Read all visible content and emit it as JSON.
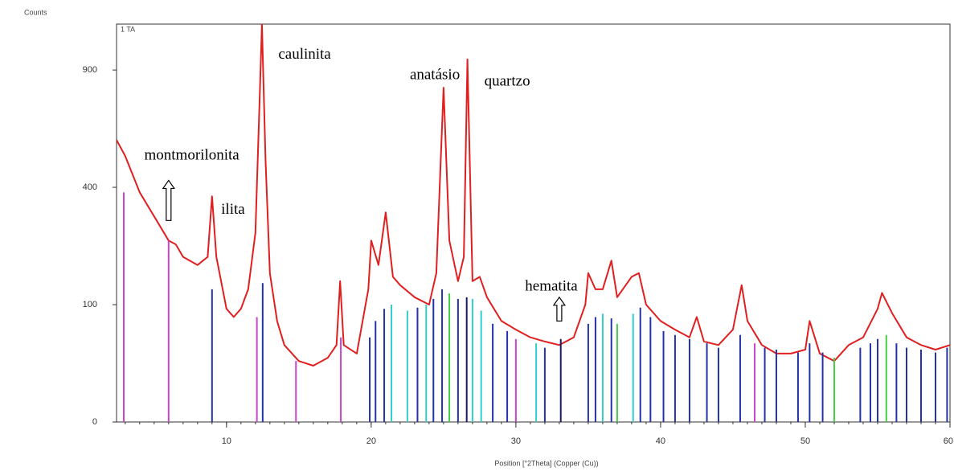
{
  "chart_data": {
    "type": "line",
    "y_axis_label": "Counts",
    "x_axis_label": "Position [°2Theta] (Copper (Cu))",
    "sample_label": "1 TA",
    "yscale": "sqrt",
    "xlim": [
      2.4,
      60
    ],
    "ylim": [
      0,
      1150
    ],
    "xticks": [
      10,
      20,
      30,
      40,
      50,
      60
    ],
    "xminor_step": 1,
    "yticks": [
      0,
      100,
      400,
      900
    ],
    "x": [
      2.4,
      3,
      4,
      5,
      6,
      6.5,
      7,
      8,
      8.7,
      9,
      9.3,
      10,
      10.5,
      11,
      11.5,
      12,
      12.3,
      12.45,
      12.7,
      13,
      13.5,
      14,
      15,
      16,
      17,
      17.6,
      17.85,
      18.1,
      19,
      19.8,
      20,
      20.5,
      21,
      21.5,
      22,
      23,
      24,
      24.5,
      25,
      25.4,
      26,
      26.4,
      26.65,
      27,
      27.5,
      28,
      29,
      30,
      31,
      32,
      33,
      34,
      34.8,
      35,
      35.5,
      36,
      36.6,
      37,
      38,
      38.5,
      39,
      40,
      41,
      42,
      42.5,
      43,
      44,
      45,
      45.6,
      46,
      47,
      48,
      49,
      50,
      50.3,
      51,
      52,
      53,
      54,
      55,
      55.3,
      56,
      57,
      58,
      59,
      60
    ],
    "series": [
      {
        "color": "#e02020",
        "values": [
          578,
          514,
          383,
          307,
          239,
          229,
          198,
          179,
          198,
          370,
          198,
          93,
          80,
          93,
          128,
          260,
          774,
          1150,
          498,
          161,
          74,
          43,
          27,
          23,
          30,
          43,
          144,
          43,
          34,
          128,
          239,
          179,
          319,
          153,
          136,
          113,
          100,
          161,
          812,
          239,
          144,
          198,
          955,
          144,
          153,
          113,
          74,
          62,
          52,
          47,
          43,
          52,
          100,
          161,
          128,
          128,
          189,
          113,
          153,
          161,
          100,
          74,
          62,
          52,
          80,
          47,
          43,
          62,
          136,
          74,
          43,
          34,
          34,
          38,
          74,
          34,
          27,
          43,
          52,
          93,
          121,
          86,
          52,
          43,
          38,
          43
        ]
      }
    ],
    "sticks": {
      "x": [
        2.9,
        6.0,
        9.0,
        12.1,
        12.5,
        14.8,
        17.9,
        19.9,
        20.3,
        20.9,
        21.4,
        22.5,
        23.2,
        23.8,
        24.3,
        24.9,
        25.4,
        26.0,
        26.6,
        27.0,
        27.6,
        28.4,
        29.4,
        30.0,
        31.4,
        32.0,
        33.1,
        35.0,
        35.5,
        36.0,
        36.6,
        37.0,
        38.1,
        38.6,
        39.3,
        40.2,
        41.0,
        42.0,
        43.2,
        44.0,
        45.5,
        46.5,
        47.2,
        48.0,
        49.5,
        50.3,
        51.2,
        52.0,
        53.8,
        54.5,
        55.0,
        55.6,
        56.3,
        57.0,
        58.0,
        59.0,
        59.8
      ],
      "values": [
        383,
        239,
        128,
        80,
        140,
        27,
        52,
        52,
        74,
        93,
        100,
        90,
        95,
        100,
        110,
        128,
        120,
        110,
        113,
        110,
        90,
        70,
        60,
        50,
        45,
        40,
        50,
        70,
        80,
        85,
        78,
        70,
        85,
        95,
        80,
        60,
        55,
        50,
        45,
        40,
        55,
        45,
        40,
        38,
        35,
        45,
        35,
        30,
        40,
        45,
        50,
        55,
        45,
        40,
        38,
        35,
        40
      ],
      "colors": [
        "#cc44cc",
        "#cc44cc",
        "#2233aa",
        "#cc44cc",
        "#2233aa",
        "#cc44cc",
        "#cc44cc",
        "#2233aa",
        "#2233aa",
        "#2233aa",
        "#33cccc",
        "#33cccc",
        "#2233aa",
        "#33cccc",
        "#2233aa",
        "#2233aa",
        "#44cc44",
        "#2233aa",
        "#1a1a66",
        "#33cccc",
        "#33cccc",
        "#2233aa",
        "#2233aa",
        "#cc44cc",
        "#33cccc",
        "#2233aa",
        "#1a1a66",
        "#2233aa",
        "#2233aa",
        "#33cccc",
        "#2233aa",
        "#44cc44",
        "#33cccc",
        "#2233aa",
        "#2233aa",
        "#2233aa",
        "#2233aa",
        "#2233aa",
        "#2233aa",
        "#2233aa",
        "#2233aa",
        "#cc44cc",
        "#2233aa",
        "#2233aa",
        "#2233aa",
        "#2233aa",
        "#2233aa",
        "#44cc44",
        "#2233aa",
        "#2233aa",
        "#2233aa",
        "#44cc44",
        "#2233aa",
        "#2233aa",
        "#2233aa",
        "#2233aa",
        "#2233aa"
      ]
    },
    "annotations": [
      {
        "text": "montmorilonita",
        "x": 7.6,
        "y": 514,
        "arrow": [
          295,
          424
        ],
        "arrow_x": 6
      },
      {
        "text": "ilita",
        "x": 10.45,
        "y": 326
      },
      {
        "text": "caulinita",
        "x": 15.4,
        "y": 977
      },
      {
        "text": "anatásio",
        "x": 24.4,
        "y": 872
      },
      {
        "text": "quartzo",
        "x": 29.4,
        "y": 840
      },
      {
        "text": "hematita",
        "x": 32.45,
        "y": 132,
        "arrow": [
          74,
          113
        ],
        "arrow_x": 33
      }
    ]
  }
}
